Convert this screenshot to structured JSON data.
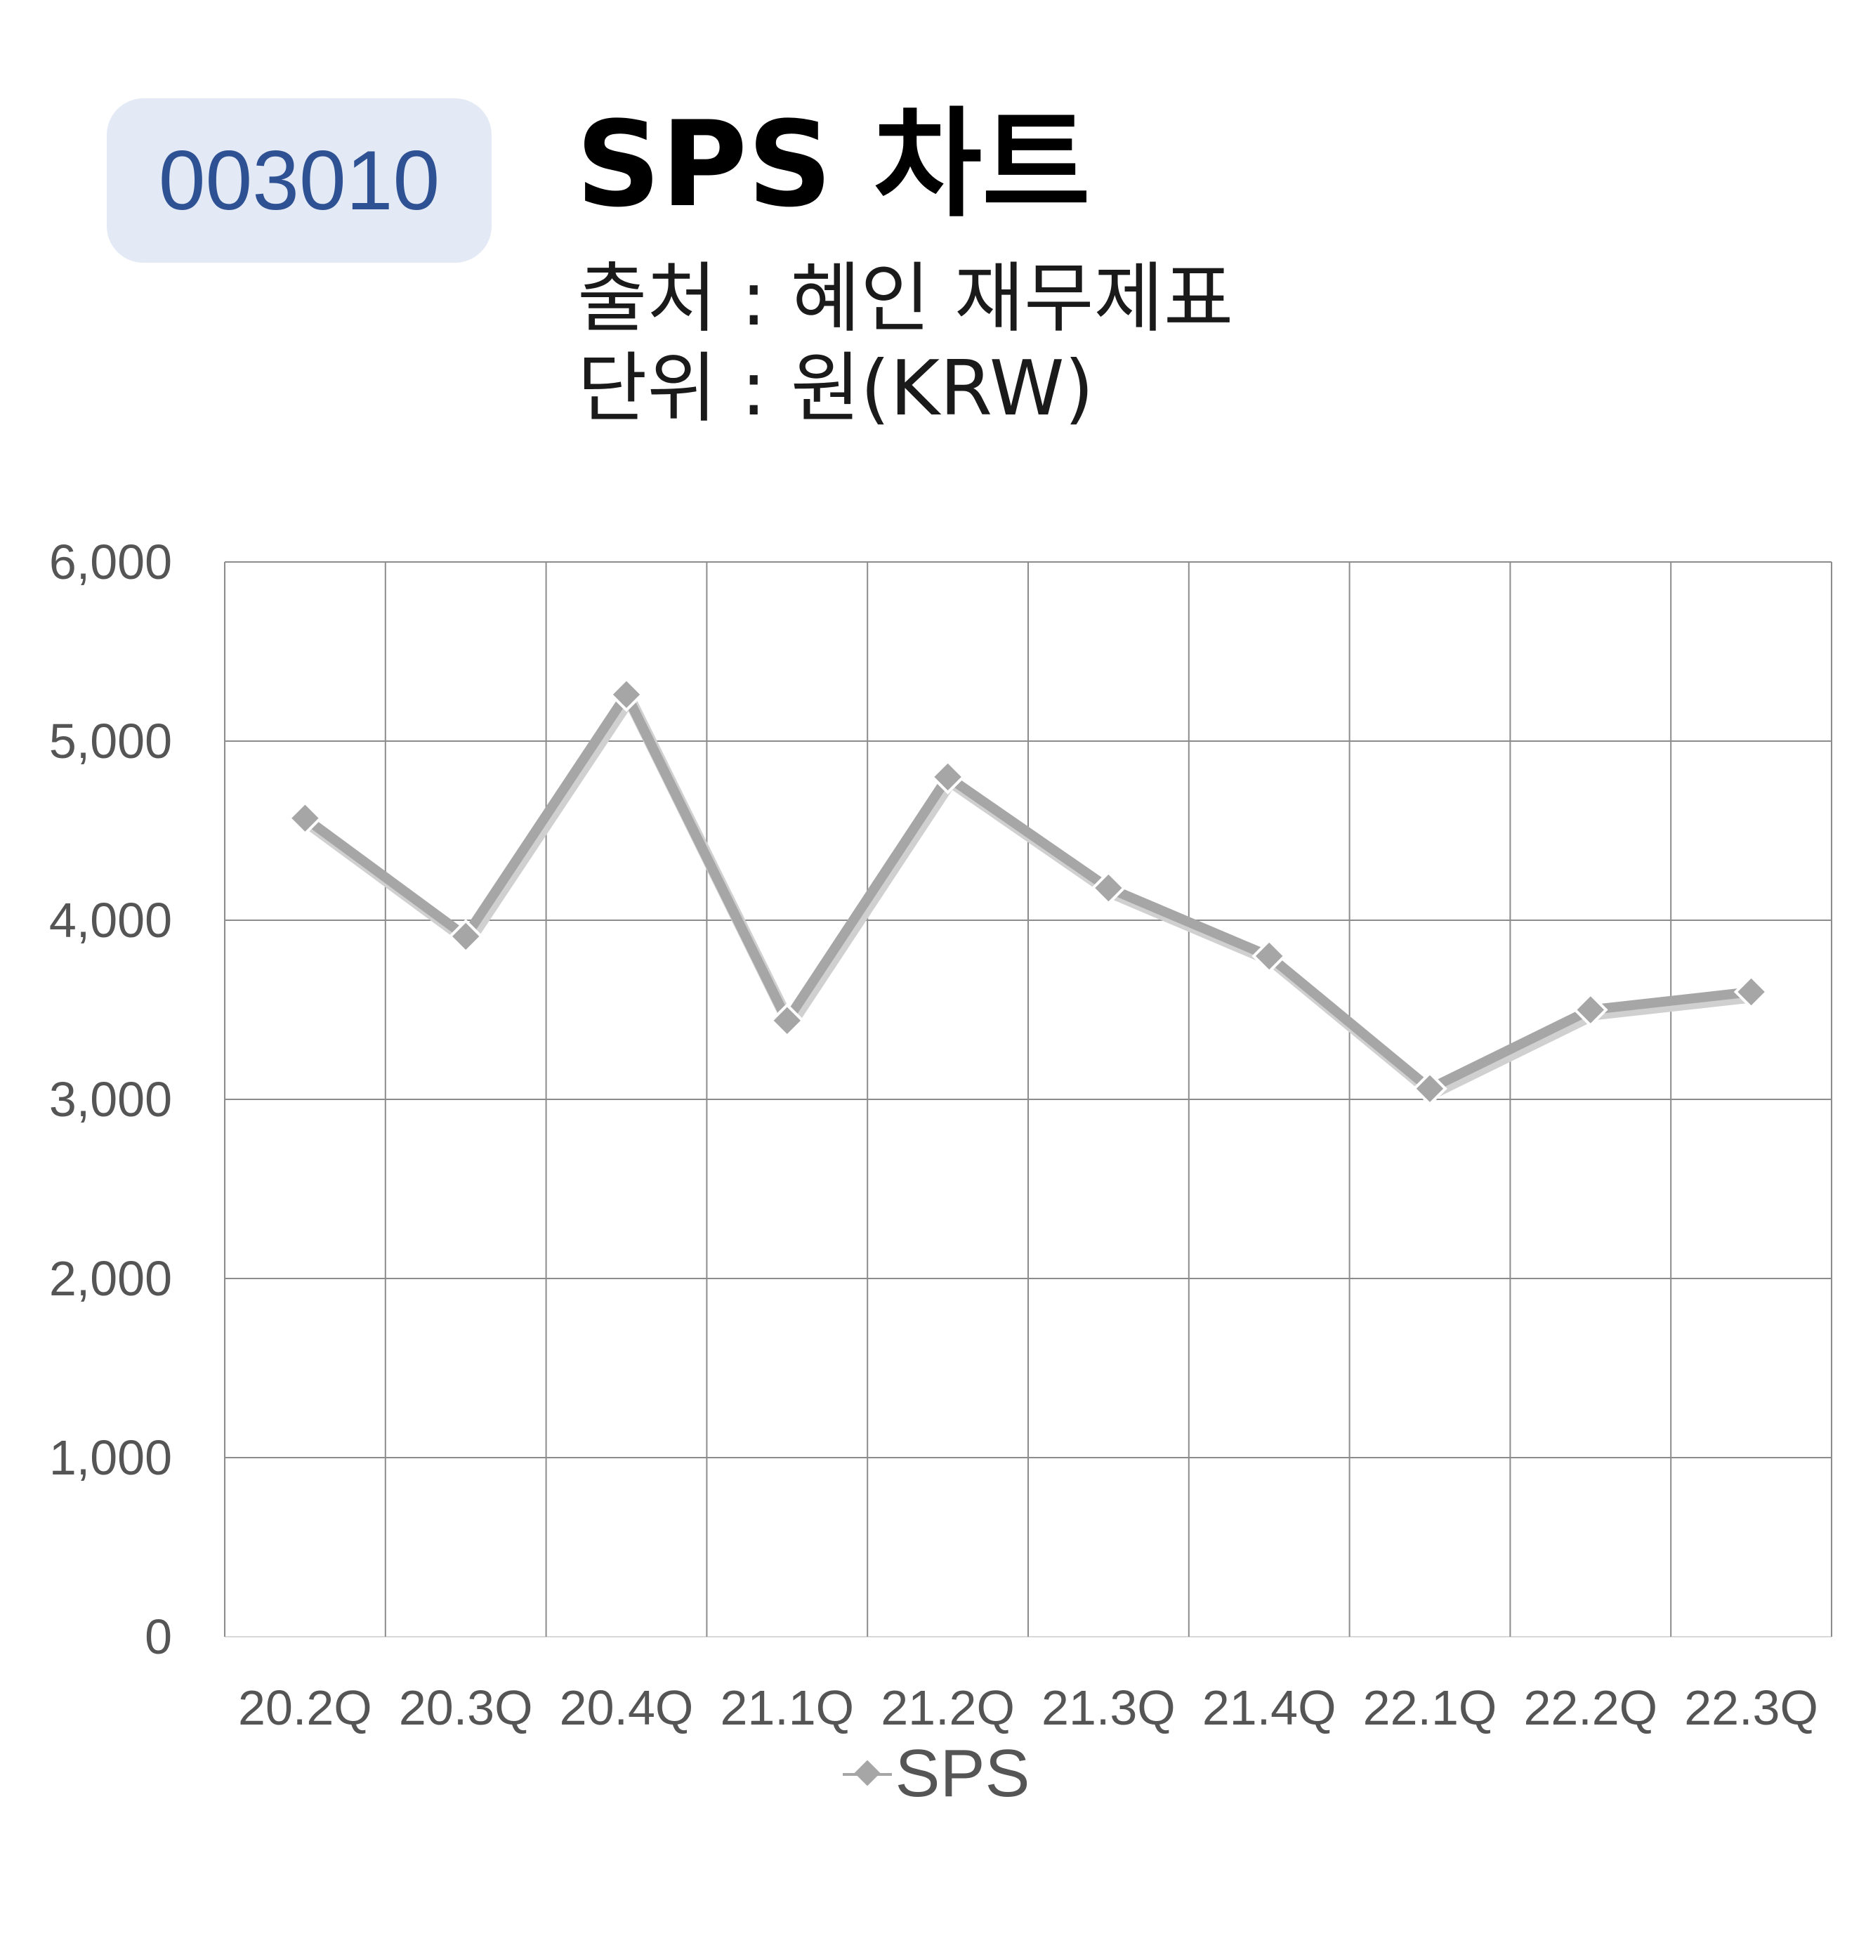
{
  "header": {
    "code": "003010",
    "title": "SPS 차트",
    "source": "출처 : 혜인 재무제표",
    "unit": "단위 : 원(KRW)"
  },
  "colors": {
    "badge_bg": "#e3e9f5",
    "badge_text": "#2e5193",
    "series_line": "#a6a6a6",
    "grid": "#8c8c8c"
  },
  "chart_data": {
    "type": "line",
    "categories": [
      "20.2Q",
      "20.3Q",
      "20.4Q",
      "21.1Q",
      "21.2Q",
      "21.3Q",
      "21.4Q",
      "22.1Q",
      "22.2Q",
      "22.3Q"
    ],
    "series": [
      {
        "name": "SPS",
        "values": [
          4570,
          3910,
          5260,
          3440,
          4800,
          4180,
          3800,
          3060,
          3500,
          3600
        ]
      }
    ],
    "ylim": [
      0,
      6000
    ],
    "yticks": [
      "0",
      "1,000",
      "2,000",
      "3,000",
      "4,000",
      "5,000",
      "6,000"
    ],
    "grid": true,
    "legend": "bottom-center",
    "marker": "diamond"
  }
}
